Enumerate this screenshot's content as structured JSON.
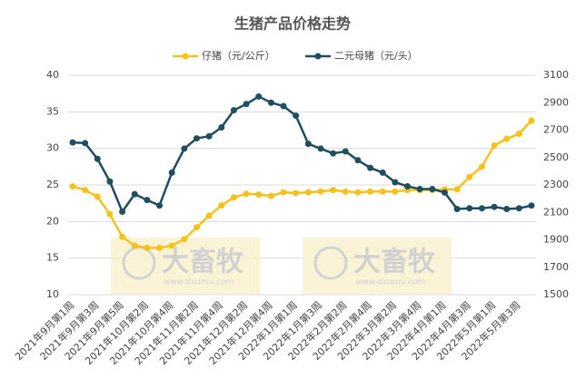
{
  "chart_data": {
    "type": "line",
    "title": "生猪产品价格走势",
    "categories": [
      "2021年9月第1周",
      null,
      "2021年9月第3周",
      null,
      "2021年9月第5周",
      null,
      "2021年10月第2周",
      null,
      "2021年10月第4周",
      null,
      "2021年11月第2周",
      null,
      "2021年11月第4周",
      null,
      "2021年12月第2周",
      null,
      "2021年12月第4周",
      null,
      "2022年1月第1周",
      null,
      "2022年1月第3周",
      null,
      "2022年2月第2周",
      null,
      "2022年2月第4周",
      null,
      "2022年3月第2周",
      null,
      "2022年3月第4周",
      null,
      "2022年4月第1周",
      null,
      "2022年4月第3周",
      null,
      "2022年5月第1周",
      null,
      "2022年5月第3周",
      null
    ],
    "series": [
      {
        "name": "仔猪（元/公斤）",
        "color": "#f5c11a",
        "values": [
          24.8,
          24.3,
          23.4,
          21.0,
          17.9,
          16.7,
          16.4,
          16.4,
          16.7,
          17.6,
          19.2,
          20.8,
          22.2,
          23.3,
          23.8,
          23.7,
          23.5,
          24.0,
          23.9,
          24.0,
          24.1,
          24.3,
          24.1,
          24.0,
          24.1,
          24.1,
          24.1,
          24.3,
          24.3,
          24.3,
          24.4,
          24.4,
          26.1,
          27.5,
          30.4,
          31.3,
          32.0,
          33.8
        ]
      },
      {
        "name": "二元母猪（元/头）",
        "color": "#1f4e5f",
        "axis": "y2",
        "values": [
          2610,
          2605,
          2490,
          2325,
          2105,
          2233,
          2190,
          2150,
          2390,
          2565,
          2640,
          2655,
          2720,
          2845,
          2890,
          2945,
          2900,
          2875,
          2805,
          2600,
          2565,
          2530,
          2545,
          2480,
          2425,
          2390,
          2320,
          2290,
          2270,
          2270,
          2245,
          2125,
          2130,
          2130,
          2140,
          2125,
          2130,
          2150
        ]
      }
    ],
    "ylim": [
      10,
      40
    ],
    "yticks": [
      10,
      15,
      20,
      25,
      30,
      35,
      40
    ],
    "y2lim": [
      1500,
      3100
    ],
    "y2ticks": [
      1500,
      1700,
      1900,
      2100,
      2300,
      2500,
      2700,
      2900,
      3100
    ],
    "grid": true,
    "legend": "top",
    "watermark": {
      "text": "大畜牧",
      "url": "www.dxumu.com"
    }
  }
}
